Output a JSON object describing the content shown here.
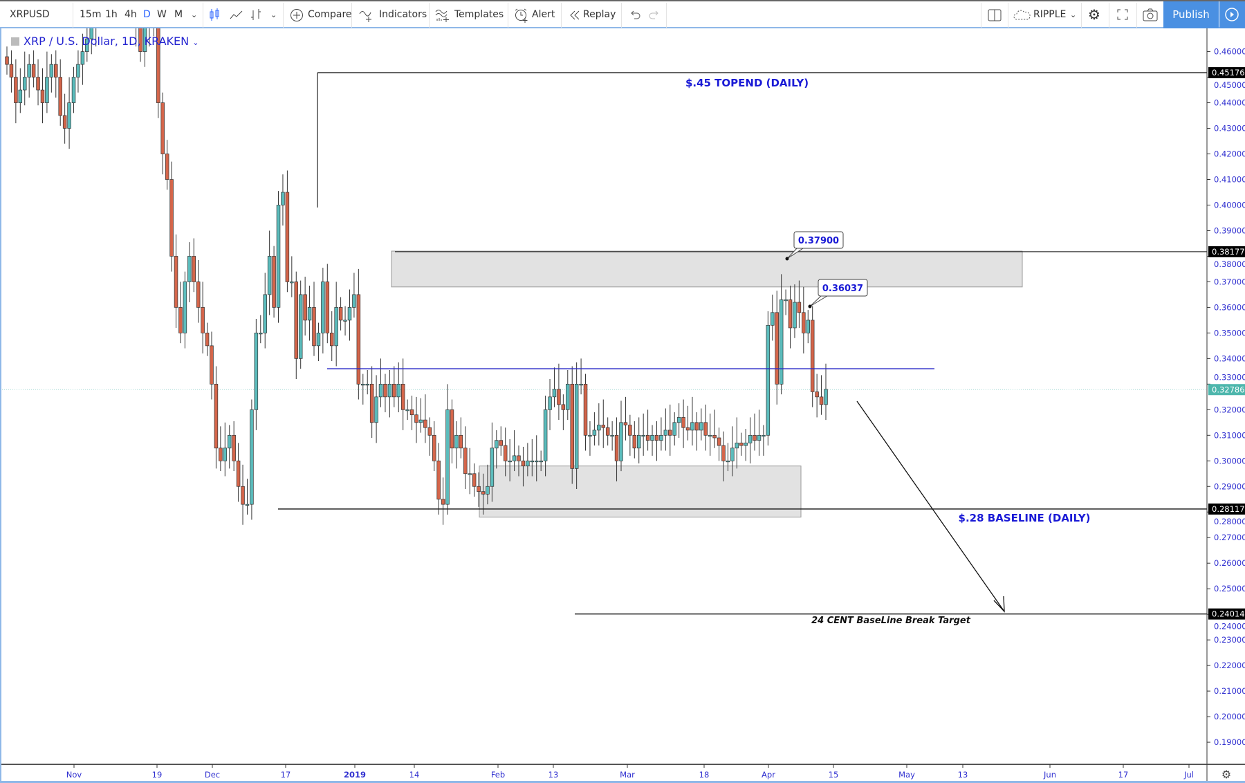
{
  "toolbar": {
    "symbol": "XRPUSD",
    "intervals": [
      "15m",
      "1h",
      "4h",
      "D",
      "W",
      "M"
    ],
    "active_interval": "D",
    "compare": "Compare",
    "indicators": "Indicators",
    "templates": "Templates",
    "alert": "Alert",
    "replay": "Replay",
    "layout_name": "RIPPLE",
    "publish": "Publish"
  },
  "legend": {
    "title": "XRP / U.S. Dollar, 1D, KRAKEN"
  },
  "colors": {
    "up": "#5bbcbc",
    "down": "#d4654a",
    "accent": "#4a90e2",
    "annotation_text": "#1a1ad6",
    "level_line": "#2b2bc8",
    "last_price": "#4db6ac"
  },
  "chart_data": {
    "type": "candlestick",
    "ylim": [
      0.185,
      0.47
    ],
    "y_ticks": [
      "0.46000",
      "0.45000",
      "0.44000",
      "0.43000",
      "0.42000",
      "0.41000",
      "0.40000",
      "0.39000",
      "0.38000",
      "0.37000",
      "0.36000",
      "0.35000",
      "0.34000",
      "0.33000",
      "0.32000",
      "0.31000",
      "0.30000",
      "0.29000",
      "0.28000",
      "0.27000",
      "0.26000",
      "0.25000",
      "0.24000",
      "0.23000",
      "0.22000",
      "0.21000",
      "0.20000",
      "0.19000"
    ],
    "x_ticks": [
      "Nov",
      "19",
      "Dec",
      "17",
      "2019",
      "14",
      "Feb",
      "13",
      "Mar",
      "18",
      "Apr",
      "15",
      "May",
      "13",
      "Jun",
      "17",
      "Jul"
    ],
    "closes": [
      0.455,
      0.45,
      0.44,
      0.445,
      0.45,
      0.455,
      0.45,
      0.445,
      0.44,
      0.45,
      0.455,
      0.45,
      0.435,
      0.43,
      0.44,
      0.45,
      0.455,
      0.46,
      0.465,
      0.47,
      0.48,
      0.5,
      0.51,
      0.5,
      0.49,
      0.5,
      0.51,
      0.5,
      0.49,
      0.47,
      0.46,
      0.47,
      0.48,
      0.47,
      0.44,
      0.42,
      0.41,
      0.38,
      0.36,
      0.35,
      0.37,
      0.38,
      0.37,
      0.36,
      0.35,
      0.345,
      0.33,
      0.305,
      0.3,
      0.305,
      0.31,
      0.3,
      0.29,
      0.283,
      0.283,
      0.32,
      0.35,
      0.35,
      0.365,
      0.38,
      0.36,
      0.4,
      0.405,
      0.37,
      0.37,
      0.34,
      0.365,
      0.355,
      0.36,
      0.345,
      0.35,
      0.37,
      0.35,
      0.345,
      0.36,
      0.355,
      0.355,
      0.36,
      0.365,
      0.33,
      0.33,
      0.33,
      0.315,
      0.325,
      0.33,
      0.325,
      0.33,
      0.325,
      0.33,
      0.32,
      0.32,
      0.318,
      0.315,
      0.316,
      0.313,
      0.31,
      0.3,
      0.285,
      0.283,
      0.32,
      0.305,
      0.31,
      0.305,
      0.295,
      0.295,
      0.29,
      0.288,
      0.287,
      0.29,
      0.305,
      0.308,
      0.306,
      0.3,
      0.3,
      0.302,
      0.3,
      0.298,
      0.3,
      0.3,
      0.3,
      0.3,
      0.32,
      0.325,
      0.328,
      0.322,
      0.32,
      0.33,
      0.297,
      0.33,
      0.33,
      0.31,
      0.31,
      0.312,
      0.314,
      0.313,
      0.31,
      0.31,
      0.3,
      0.315,
      0.314,
      0.31,
      0.305,
      0.31,
      0.31,
      0.308,
      0.31,
      0.308,
      0.31,
      0.312,
      0.31,
      0.315,
      0.317,
      0.313,
      0.312,
      0.315,
      0.312,
      0.315,
      0.31,
      0.31,
      0.309,
      0.306,
      0.3,
      0.3,
      0.305,
      0.307,
      0.306,
      0.307,
      0.31,
      0.308,
      0.31,
      0.31,
      0.353,
      0.358,
      0.33,
      0.363,
      0.363,
      0.352,
      0.362,
      0.358,
      0.35,
      0.355,
      0.327,
      0.325,
      0.322,
      0.328
    ],
    "levels": {
      "topend": {
        "price": 0.45176,
        "label": "0.45176",
        "text": "$.45 TOPEND (DAILY)"
      },
      "resistance": {
        "price": 0.38177,
        "label": "0.38177"
      },
      "baseline": {
        "price": 0.28117,
        "label": "0.28117",
        "text": "$.28 BASELINE (DAILY)"
      },
      "target": {
        "price": 0.24014,
        "label": "0.24014",
        "text": "24 CENT BaseLine Break Target"
      },
      "mid_line": {
        "price": 0.336
      },
      "last_price": {
        "price": 0.32786,
        "label": "0.32786"
      }
    },
    "zones": [
      {
        "from": 0.368,
        "to": 0.382
      },
      {
        "from": 0.278,
        "to": 0.298
      }
    ],
    "callouts": [
      {
        "price": 0.379,
        "label": "0.37900"
      },
      {
        "price": 0.36037,
        "label": "0.36037"
      }
    ]
  }
}
